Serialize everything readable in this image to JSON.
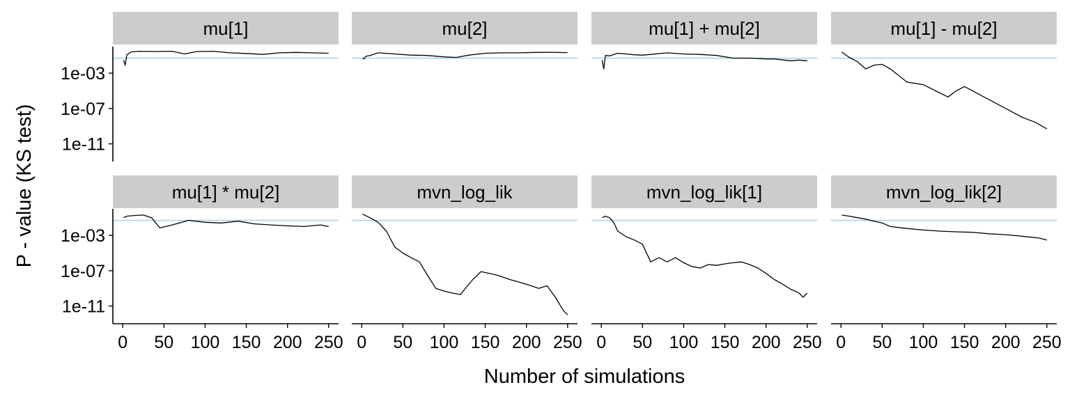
{
  "chart_data": {
    "type": "line",
    "layout": "facet_wrap_2x4",
    "ylabel": "P - value (KS test)",
    "xlabel": "Number of simulations",
    "y_scale": "log10",
    "x_ticks": [
      0,
      50,
      100,
      150,
      200,
      250
    ],
    "x_tick_labels": [
      "0",
      "50",
      "100",
      "150",
      "200",
      "250"
    ],
    "xlim": [
      -12,
      262
    ],
    "y_ticks": [
      0.001,
      1e-07,
      1e-11
    ],
    "y_tick_labels": [
      "1e-03",
      "1e-07",
      "1e-11"
    ],
    "ylim": [
      1e-13,
      1
    ],
    "reference_line": 0.05,
    "colors": {
      "series": "#000000",
      "reference": "#a8d8e0",
      "strip": "#cccccc"
    },
    "panels": [
      {
        "label": "mu[1]",
        "points": [
          [
            1,
            0.03
          ],
          [
            3,
            0.008
          ],
          [
            5,
            0.12
          ],
          [
            10,
            0.25
          ],
          [
            20,
            0.3
          ],
          [
            40,
            0.28
          ],
          [
            60,
            0.3
          ],
          [
            75,
            0.15
          ],
          [
            90,
            0.28
          ],
          [
            110,
            0.3
          ],
          [
            130,
            0.2
          ],
          [
            150,
            0.17
          ],
          [
            170,
            0.13
          ],
          [
            190,
            0.2
          ],
          [
            210,
            0.22
          ],
          [
            230,
            0.2
          ],
          [
            250,
            0.18
          ]
        ]
      },
      {
        "label": "mu[2]",
        "points": [
          [
            1,
            0.05
          ],
          [
            3,
            0.04
          ],
          [
            5,
            0.08
          ],
          [
            10,
            0.1
          ],
          [
            20,
            0.2
          ],
          [
            40,
            0.15
          ],
          [
            60,
            0.11
          ],
          [
            80,
            0.1
          ],
          [
            100,
            0.07
          ],
          [
            115,
            0.06
          ],
          [
            130,
            0.11
          ],
          [
            150,
            0.18
          ],
          [
            170,
            0.2
          ],
          [
            190,
            0.2
          ],
          [
            210,
            0.22
          ],
          [
            230,
            0.23
          ],
          [
            250,
            0.21
          ]
        ]
      },
      {
        "label": "mu[1] + mu[2]",
        "points": [
          [
            1,
            0.03
          ],
          [
            3,
            0.003
          ],
          [
            5,
            0.1
          ],
          [
            10,
            0.09
          ],
          [
            20,
            0.18
          ],
          [
            30,
            0.15
          ],
          [
            40,
            0.12
          ],
          [
            50,
            0.11
          ],
          [
            60,
            0.13
          ],
          [
            80,
            0.2
          ],
          [
            100,
            0.15
          ],
          [
            120,
            0.13
          ],
          [
            140,
            0.1
          ],
          [
            160,
            0.05
          ],
          [
            180,
            0.05
          ],
          [
            200,
            0.04
          ],
          [
            210,
            0.04
          ],
          [
            230,
            0.025
          ],
          [
            240,
            0.03
          ],
          [
            250,
            0.025
          ]
        ]
      },
      {
        "label": "mu[1] - mu[2]",
        "points": [
          [
            1,
            0.25
          ],
          [
            10,
            0.06
          ],
          [
            20,
            0.02
          ],
          [
            30,
            0.003
          ],
          [
            40,
            0.008
          ],
          [
            50,
            0.01
          ],
          [
            60,
            0.003
          ],
          [
            80,
            0.0001
          ],
          [
            100,
            5e-05
          ],
          [
            115,
            1e-05
          ],
          [
            130,
            2e-06
          ],
          [
            140,
            1e-05
          ],
          [
            150,
            3e-05
          ],
          [
            160,
            1e-05
          ],
          [
            170,
            3e-06
          ],
          [
            180,
            1e-06
          ],
          [
            200,
            1e-07
          ],
          [
            220,
            1e-08
          ],
          [
            235,
            3e-09
          ],
          [
            250,
            5e-10
          ]
        ]
      },
      {
        "label": "mu[1] * mu[2]",
        "points": [
          [
            1,
            0.1
          ],
          [
            5,
            0.15
          ],
          [
            15,
            0.18
          ],
          [
            25,
            0.2
          ],
          [
            35,
            0.1
          ],
          [
            45,
            0.007
          ],
          [
            60,
            0.015
          ],
          [
            80,
            0.05
          ],
          [
            100,
            0.03
          ],
          [
            120,
            0.025
          ],
          [
            140,
            0.04
          ],
          [
            160,
            0.02
          ],
          [
            180,
            0.015
          ],
          [
            200,
            0.012
          ],
          [
            220,
            0.01
          ],
          [
            240,
            0.015
          ],
          [
            250,
            0.01
          ]
        ]
      },
      {
        "label": "mvn_log_lik",
        "points": [
          [
            1,
            0.25
          ],
          [
            10,
            0.1
          ],
          [
            20,
            0.03
          ],
          [
            30,
            0.003
          ],
          [
            40,
            5e-05
          ],
          [
            50,
            1e-05
          ],
          [
            60,
            3e-06
          ],
          [
            70,
            1e-06
          ],
          [
            80,
            3e-08
          ],
          [
            90,
            1e-09
          ],
          [
            100,
            5e-10
          ],
          [
            110,
            3e-10
          ],
          [
            120,
            2e-10
          ],
          [
            125,
            8e-10
          ],
          [
            135,
            1e-08
          ],
          [
            145,
            8e-08
          ],
          [
            155,
            5e-08
          ],
          [
            165,
            3e-08
          ],
          [
            180,
            1e-08
          ],
          [
            200,
            3e-09
          ],
          [
            215,
            1e-09
          ],
          [
            225,
            2e-09
          ],
          [
            235,
            1e-10
          ],
          [
            245,
            3e-12
          ],
          [
            250,
            1e-12
          ]
        ]
      },
      {
        "label": "mvn_log_lik[1]",
        "points": [
          [
            1,
            0.1
          ],
          [
            5,
            0.15
          ],
          [
            10,
            0.1
          ],
          [
            15,
            0.03
          ],
          [
            20,
            0.003
          ],
          [
            30,
            0.0007
          ],
          [
            40,
            0.0003
          ],
          [
            50,
            0.0001
          ],
          [
            60,
            1e-06
          ],
          [
            70,
            3e-06
          ],
          [
            80,
            1e-06
          ],
          [
            90,
            3e-06
          ],
          [
            100,
            8e-07
          ],
          [
            110,
            3e-07
          ],
          [
            120,
            2e-07
          ],
          [
            130,
            5e-07
          ],
          [
            140,
            4e-07
          ],
          [
            150,
            6e-07
          ],
          [
            160,
            8e-07
          ],
          [
            170,
            1e-06
          ],
          [
            180,
            5e-07
          ],
          [
            190,
            2e-07
          ],
          [
            200,
            5e-08
          ],
          [
            210,
            1e-08
          ],
          [
            220,
            3e-09
          ],
          [
            230,
            8e-10
          ],
          [
            240,
            3e-10
          ],
          [
            245,
            1e-10
          ],
          [
            250,
            3e-10
          ]
        ]
      },
      {
        "label": "mvn_log_lik[2]",
        "points": [
          [
            1,
            0.2
          ],
          [
            10,
            0.15
          ],
          [
            20,
            0.1
          ],
          [
            30,
            0.07
          ],
          [
            40,
            0.04
          ],
          [
            50,
            0.025
          ],
          [
            60,
            0.01
          ],
          [
            80,
            0.006
          ],
          [
            100,
            0.004
          ],
          [
            120,
            0.003
          ],
          [
            140,
            0.0025
          ],
          [
            160,
            0.0022
          ],
          [
            180,
            0.0015
          ],
          [
            200,
            0.0012
          ],
          [
            220,
            0.0008
          ],
          [
            240,
            0.0005
          ],
          [
            250,
            0.0003
          ]
        ]
      }
    ]
  }
}
